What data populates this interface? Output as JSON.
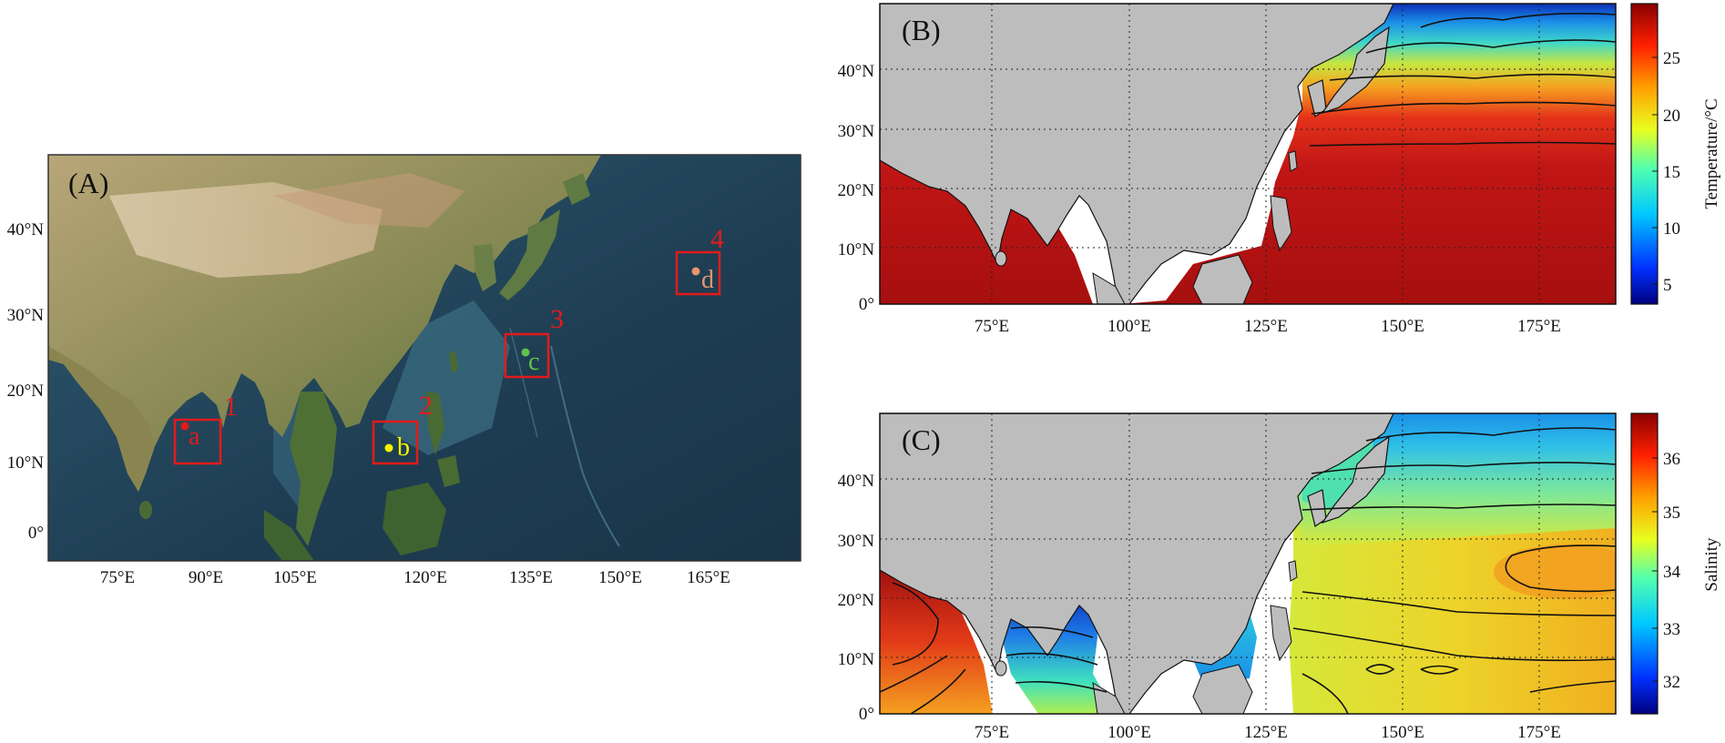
{
  "panels": {
    "A": {
      "label": "(A)",
      "y_ticks": [
        "40°N",
        "30°N",
        "20°N",
        "10°N",
        "0°"
      ],
      "x_ticks": [
        "75°E",
        "90°E",
        "105°E",
        "120°E",
        "135°E",
        "150°E",
        "165°E"
      ],
      "boxes": [
        {
          "number": "1",
          "letter": "a",
          "color": "#e21b1b"
        },
        {
          "number": "2",
          "letter": "b",
          "color": "#f2f200"
        },
        {
          "number": "3",
          "letter": "c",
          "color": "#5fc24a"
        },
        {
          "number": "4",
          "letter": "d",
          "color": "#e8956a"
        }
      ]
    },
    "B": {
      "label": "(B)",
      "y_ticks": [
        "40°N",
        "30°N",
        "20°N",
        "10°N",
        "0°"
      ],
      "x_ticks": [
        "75°E",
        "100°E",
        "125°E",
        "150°E",
        "175°E"
      ],
      "colorbar_label": "Temperature/°C",
      "colorbar_ticks": [
        "25",
        "20",
        "15",
        "10",
        "5"
      ]
    },
    "C": {
      "label": "(C)",
      "y_ticks": [
        "40°N",
        "30°N",
        "20°N",
        "10°N",
        "0°"
      ],
      "x_ticks": [
        "75°E",
        "100°E",
        "125°E",
        "150°E",
        "175°E"
      ],
      "colorbar_label": "Salinity",
      "colorbar_ticks": [
        "36",
        "35",
        "34",
        "33",
        "32"
      ]
    }
  },
  "colors": {
    "land": "#bdbdbd",
    "ocean_map_deep": "#1f3f55",
    "ocean_map_shallow": "#4e7f93",
    "box_outline": "#e21b1b"
  }
}
